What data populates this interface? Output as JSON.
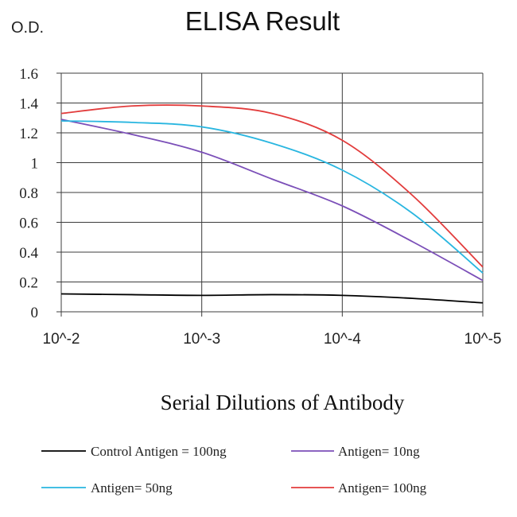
{
  "chart_data": {
    "type": "line",
    "title": "ELISA Result",
    "ylabel": "O.D.",
    "xlabel": "Serial Dilutions of Antibody",
    "x_categories": [
      "10^-2",
      "10^-3",
      "10^-4",
      "10^-5"
    ],
    "ylim": [
      0,
      1.6
    ],
    "yticks": [
      "0",
      "0.2",
      "0.4",
      "0.6",
      "0.8",
      "1",
      "1.2",
      "1.4",
      "1.6"
    ],
    "grid": true,
    "legend_position": "bottom",
    "series": [
      {
        "name": "Control Antigen = 100ng",
        "color": "#000000",
        "x": [
          0,
          0.5,
          1,
          1.5,
          2,
          2.5,
          3
        ],
        "y": [
          0.12,
          0.115,
          0.11,
          0.115,
          0.11,
          0.09,
          0.06
        ]
      },
      {
        "name": "Antigen= 10ng",
        "color": "#7b4fb8",
        "x": [
          0,
          0.5,
          1,
          1.5,
          2,
          2.5,
          3
        ],
        "y": [
          1.29,
          1.19,
          1.07,
          0.89,
          0.71,
          0.47,
          0.21
        ]
      },
      {
        "name": "Antigen= 50ng",
        "color": "#29b6e0",
        "x": [
          0,
          0.5,
          1,
          1.5,
          2,
          2.5,
          3
        ],
        "y": [
          1.28,
          1.27,
          1.24,
          1.13,
          0.95,
          0.66,
          0.26
        ]
      },
      {
        "name": "Antigen= 100ng",
        "color": "#e23c3c",
        "x": [
          0,
          0.5,
          1,
          1.5,
          2,
          2.5,
          3
        ],
        "y": [
          1.33,
          1.38,
          1.38,
          1.33,
          1.15,
          0.78,
          0.3
        ]
      }
    ]
  }
}
